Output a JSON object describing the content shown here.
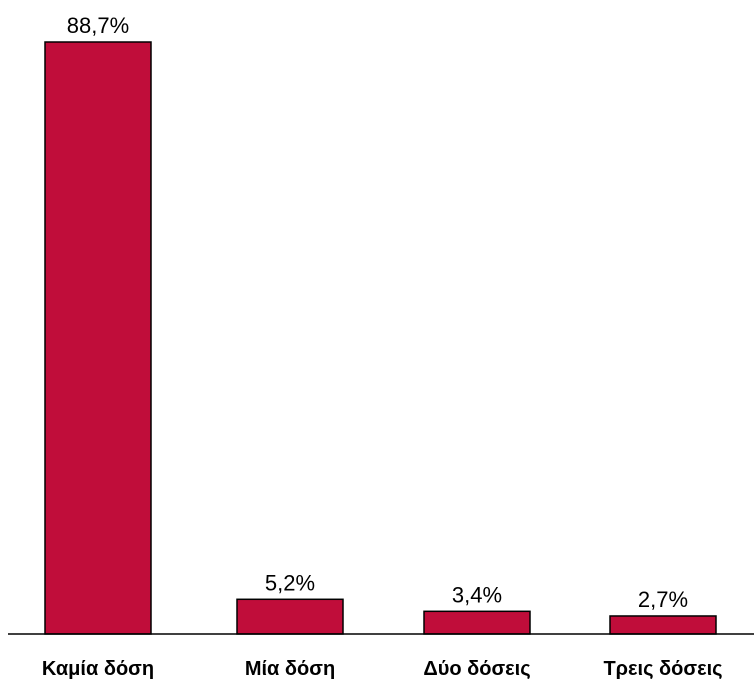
{
  "chart_data": {
    "type": "bar",
    "title": "",
    "xlabel": "",
    "ylabel": "",
    "categories": [
      "Καμία δόση",
      "Μία δόση",
      "Δύο δόσεις",
      "Τρεις δόσεις"
    ],
    "values": [
      88.7,
      5.2,
      3.4,
      2.7
    ],
    "value_labels": [
      "88,7%",
      "5,2%",
      "3,4%",
      "2,7%"
    ],
    "ylim": [
      0,
      88.7
    ],
    "grid": false,
    "legend": "none",
    "colors": {
      "bar_fill": "#c00d3a",
      "bar_stroke": "#000000",
      "axis": "#000000"
    }
  }
}
